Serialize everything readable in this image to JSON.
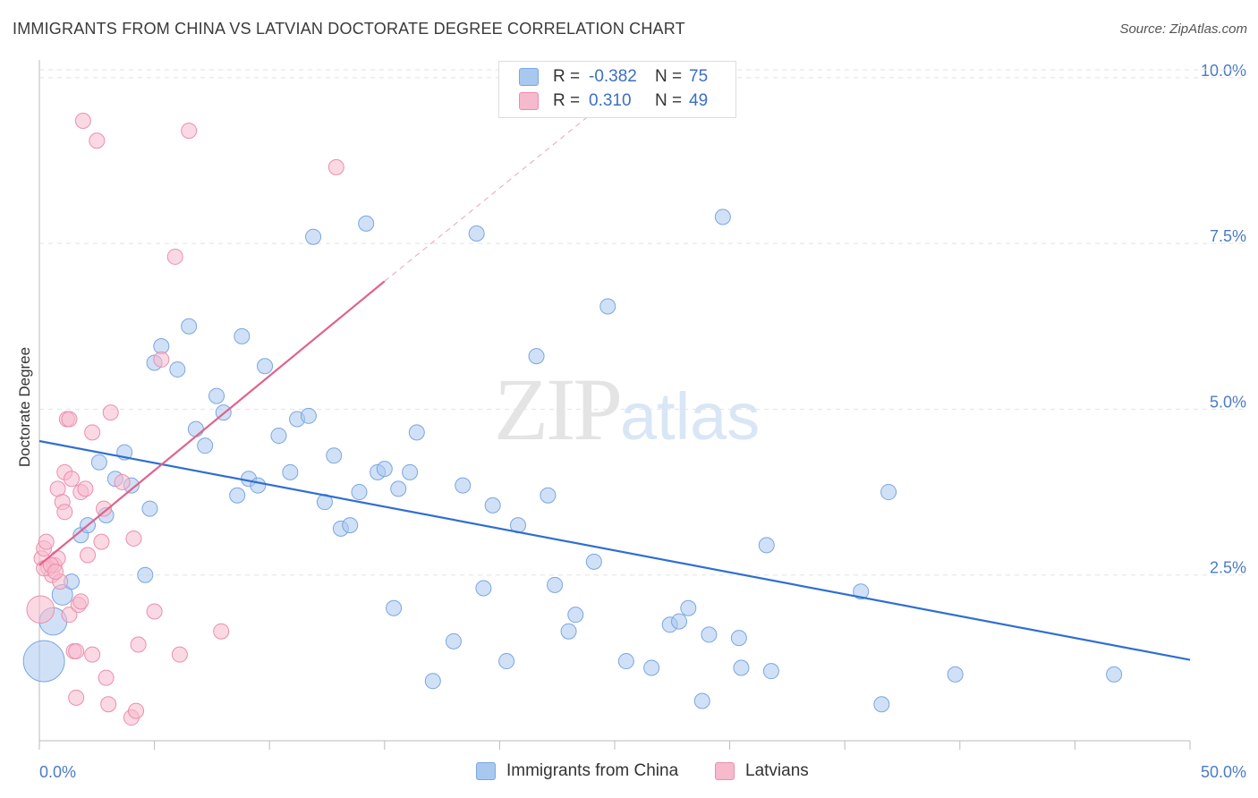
{
  "header": {
    "title": "IMMIGRANTS FROM CHINA VS LATVIAN DOCTORATE DEGREE CORRELATION CHART",
    "source": "Source: ZipAtlas.com"
  },
  "legend": {
    "rows": [
      {
        "r_label": "R =",
        "r_value": "-0.382",
        "n_label": "N =",
        "n_value": "75",
        "color": "#a9c8f0"
      },
      {
        "r_label": "R =",
        "r_value": "0.310",
        "n_label": "N =",
        "n_value": "49",
        "color": "#f7b9cc"
      }
    ]
  },
  "watermark": {
    "zip": "ZIP",
    "atlas": "atlas"
  },
  "chart_data": {
    "type": "scatter",
    "ylabel": "Doctorate Degree",
    "x_tick_labels": [
      "0.0%",
      "50.0%"
    ],
    "y_tick_labels": [
      "2.5%",
      "5.0%",
      "7.5%",
      "10.0%"
    ],
    "y_ticks": [
      2.5,
      5.0,
      7.5,
      10.0
    ],
    "xlim": [
      0,
      50
    ],
    "ylim": [
      0,
      10.2
    ],
    "grid": true,
    "legend_position": "top-center",
    "colors": {
      "china_fill": "#a9c8f0",
      "china_stroke": "#7aa6df",
      "china_line": "#2f6fd0",
      "latvian_fill": "#f7b9cc",
      "latvian_stroke": "#eb8fab",
      "latvian_line": "#e0638c"
    },
    "series": [
      {
        "name": "Immigrants from China",
        "points": [
          [
            0.2,
            1.2,
            3
          ],
          [
            0.6,
            1.8,
            2
          ],
          [
            1.0,
            2.2,
            1.5
          ],
          [
            1.4,
            2.4,
            1
          ],
          [
            1.8,
            3.1,
            1
          ],
          [
            2.1,
            3.25,
            1
          ],
          [
            2.6,
            4.2,
            1
          ],
          [
            2.9,
            3.4,
            1
          ],
          [
            3.3,
            3.95,
            1
          ],
          [
            3.7,
            4.35,
            1
          ],
          [
            4.0,
            3.85,
            1
          ],
          [
            4.6,
            2.5,
            1
          ],
          [
            4.8,
            3.5,
            1
          ],
          [
            5.0,
            5.7,
            1
          ],
          [
            5.3,
            5.95,
            1
          ],
          [
            6.0,
            5.6,
            1
          ],
          [
            6.5,
            6.25,
            1
          ],
          [
            6.8,
            4.7,
            1
          ],
          [
            7.2,
            4.45,
            1
          ],
          [
            7.7,
            5.2,
            1
          ],
          [
            8.0,
            4.95,
            1
          ],
          [
            8.6,
            3.7,
            1
          ],
          [
            8.8,
            6.1,
            1
          ],
          [
            9.1,
            3.95,
            1
          ],
          [
            9.5,
            3.85,
            1
          ],
          [
            9.8,
            5.65,
            1
          ],
          [
            10.4,
            4.6,
            1
          ],
          [
            10.9,
            4.05,
            1
          ],
          [
            11.2,
            4.85,
            1
          ],
          [
            11.7,
            4.9,
            1
          ],
          [
            11.9,
            7.6,
            1
          ],
          [
            12.4,
            3.6,
            1
          ],
          [
            12.8,
            4.3,
            1
          ],
          [
            13.1,
            3.2,
            1
          ],
          [
            13.5,
            3.25,
            1
          ],
          [
            13.9,
            3.75,
            1
          ],
          [
            14.2,
            7.8,
            1
          ],
          [
            14.7,
            4.05,
            1
          ],
          [
            15.0,
            4.1,
            1
          ],
          [
            15.4,
            2.0,
            1
          ],
          [
            15.6,
            3.8,
            1
          ],
          [
            16.1,
            4.05,
            1
          ],
          [
            16.4,
            4.65,
            1
          ],
          [
            17.1,
            0.9,
            1
          ],
          [
            18.0,
            1.5,
            1
          ],
          [
            18.4,
            3.85,
            1
          ],
          [
            19.0,
            7.65,
            1
          ],
          [
            19.3,
            2.3,
            1
          ],
          [
            19.7,
            3.55,
            1
          ],
          [
            20.3,
            1.2,
            1
          ],
          [
            20.8,
            3.25,
            1
          ],
          [
            21.6,
            5.8,
            1
          ],
          [
            22.1,
            3.7,
            1
          ],
          [
            22.4,
            2.35,
            1
          ],
          [
            23.0,
            1.65,
            1
          ],
          [
            23.3,
            1.9,
            1
          ],
          [
            24.1,
            2.7,
            1
          ],
          [
            24.7,
            6.55,
            1
          ],
          [
            25.5,
            1.2,
            1
          ],
          [
            26.6,
            1.1,
            1
          ],
          [
            27.4,
            1.75,
            1
          ],
          [
            27.8,
            1.8,
            1
          ],
          [
            28.2,
            2.0,
            1
          ],
          [
            29.1,
            1.6,
            1
          ],
          [
            28.8,
            0.6,
            1
          ],
          [
            30.4,
            1.55,
            1
          ],
          [
            30.5,
            1.1,
            1
          ],
          [
            29.7,
            7.9,
            1
          ],
          [
            31.6,
            2.95,
            1
          ],
          [
            31.8,
            1.05,
            1
          ],
          [
            35.7,
            2.25,
            1
          ],
          [
            36.9,
            3.75,
            1
          ],
          [
            36.6,
            0.55,
            1
          ],
          [
            39.8,
            1.0,
            1
          ],
          [
            46.7,
            1.0,
            1
          ]
        ]
      },
      {
        "name": "Latvians",
        "points": [
          [
            0.05,
            1.98,
            2
          ],
          [
            0.1,
            2.75,
            1
          ],
          [
            0.2,
            2.9,
            1
          ],
          [
            0.3,
            3.0,
            1
          ],
          [
            0.4,
            2.6,
            1
          ],
          [
            0.55,
            2.5,
            1
          ],
          [
            0.65,
            2.65,
            1
          ],
          [
            0.8,
            2.75,
            1
          ],
          [
            0.8,
            3.8,
            1
          ],
          [
            0.9,
            2.4,
            1
          ],
          [
            1.0,
            3.6,
            1
          ],
          [
            1.1,
            4.05,
            1
          ],
          [
            1.1,
            3.45,
            1
          ],
          [
            1.2,
            4.85,
            1
          ],
          [
            1.3,
            1.9,
            1
          ],
          [
            1.3,
            4.85,
            1
          ],
          [
            1.4,
            3.95,
            1
          ],
          [
            1.5,
            1.35,
            1
          ],
          [
            1.6,
            1.35,
            1
          ],
          [
            1.6,
            0.65,
            1
          ],
          [
            1.7,
            2.05,
            1
          ],
          [
            1.8,
            3.75,
            1
          ],
          [
            1.8,
            2.1,
            1
          ],
          [
            1.9,
            9.35,
            1
          ],
          [
            2.0,
            3.8,
            1
          ],
          [
            2.1,
            2.8,
            1
          ],
          [
            2.3,
            4.65,
            1
          ],
          [
            2.3,
            1.3,
            1
          ],
          [
            2.5,
            9.05,
            1
          ],
          [
            2.7,
            3.0,
            1
          ],
          [
            2.8,
            3.5,
            1
          ],
          [
            2.9,
            0.95,
            1
          ],
          [
            3.0,
            0.55,
            1
          ],
          [
            3.1,
            4.95,
            1
          ],
          [
            3.6,
            3.9,
            1
          ],
          [
            4.0,
            0.35,
            1
          ],
          [
            4.1,
            3.05,
            1
          ],
          [
            4.2,
            0.45,
            1
          ],
          [
            4.3,
            1.45,
            1
          ],
          [
            5.0,
            1.95,
            1
          ],
          [
            5.3,
            5.75,
            1
          ],
          [
            5.9,
            7.3,
            1
          ],
          [
            6.1,
            1.3,
            1
          ],
          [
            6.5,
            9.2,
            1
          ],
          [
            7.9,
            1.65,
            1
          ],
          [
            12.9,
            8.65,
            1
          ],
          [
            0.2,
            2.6,
            1
          ],
          [
            0.5,
            2.65,
            1
          ],
          [
            0.7,
            2.55,
            1
          ]
        ]
      }
    ],
    "trendlines": [
      {
        "series": "Immigrants from China",
        "x": [
          0,
          50
        ],
        "y": [
          4.52,
          1.22
        ],
        "style": "solid"
      },
      {
        "series": "Latvians",
        "x": [
          0,
          15
        ],
        "y": [
          2.65,
          6.93
        ],
        "style": "solid"
      },
      {
        "series": "Latvians",
        "x": [
          15,
          24.5
        ],
        "y": [
          6.93,
          9.6
        ],
        "style": "dashed"
      }
    ]
  },
  "bottom_legend": {
    "items": [
      {
        "label": "Immigrants from China",
        "color": "#a9c8f0"
      },
      {
        "label": "Latvians",
        "color": "#f7b9cc"
      }
    ]
  }
}
